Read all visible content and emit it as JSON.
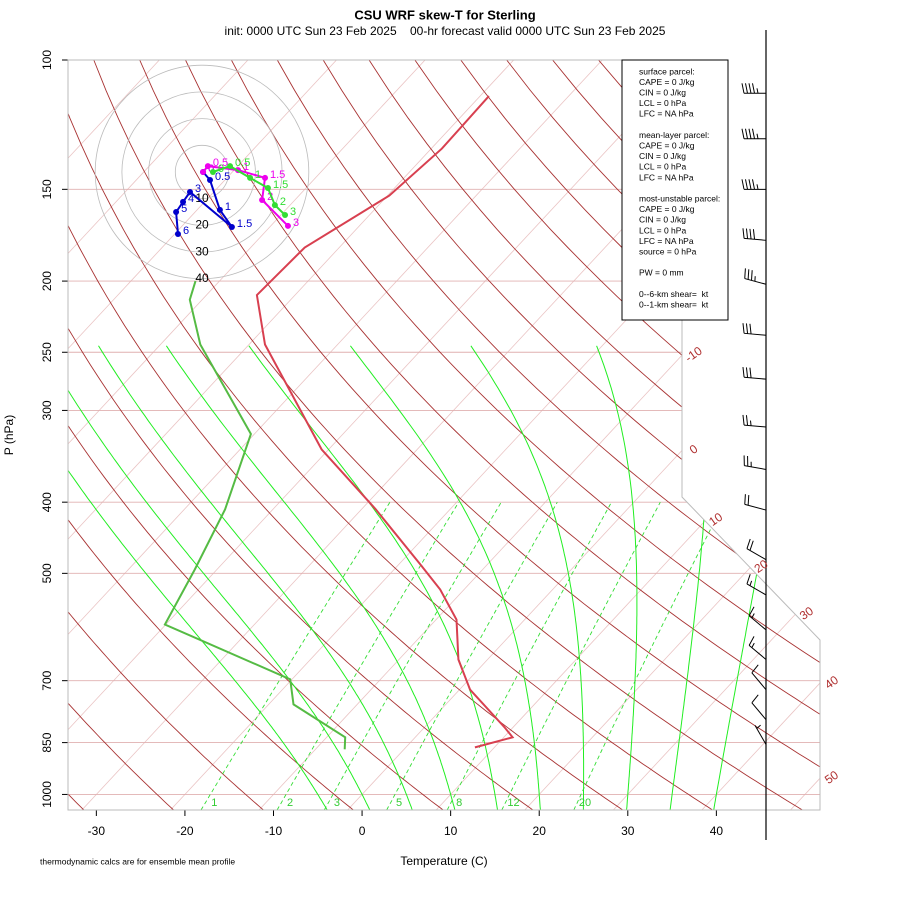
{
  "chart_data": {
    "type": "skew-t",
    "title": "CSU WRF skew-T for Sterling",
    "subtitle": "init: 0000 UTC Sun 23 Feb 2025    00-hr forecast valid 0000 UTC Sun 23 Feb 2025",
    "x_label": "Temperature (C)",
    "y_label": "P (hPa)",
    "footnote": "thermodynamic calcs are for ensemble mean profile",
    "log_y": true,
    "xlim": [
      -33.2,
      51.7
    ],
    "xticks": [
      -30,
      -20,
      -10,
      0,
      10,
      20,
      30,
      40
    ],
    "ylim": [
      1050,
      100
    ],
    "yticks": [
      100,
      150,
      200,
      250,
      300,
      400,
      500,
      700,
      850,
      1000
    ],
    "isotherms": [
      -100,
      -90,
      -80,
      -70,
      -60,
      -50,
      -40,
      -30,
      -20,
      -10,
      0,
      10,
      20,
      30,
      40,
      50
    ],
    "isotherm_labels": [
      -10,
      0,
      10,
      20,
      30,
      40,
      50
    ],
    "dry_adiabats": [
      230,
      240,
      250,
      260,
      270,
      280,
      290,
      300,
      310,
      320,
      330,
      340,
      350,
      360,
      370,
      380,
      390,
      400,
      410,
      420,
      430,
      440,
      450,
      460,
      470,
      480
    ],
    "moist_adiabats": [
      -5,
      0,
      5,
      10,
      15,
      20,
      25,
      30,
      35,
      40
    ],
    "mixing_ratios": [
      1,
      2,
      3,
      5,
      8,
      12,
      20
    ],
    "series": [
      {
        "color": "#d84050",
        "pressure": [
          863,
          836,
          811,
          720,
          655,
          578,
          526,
          486,
          409,
          339,
          244,
          209,
          180,
          153,
          132,
          112
        ],
        "values": [
          7.8,
          11.0,
          9.1,
          1.2,
          -3.3,
          -7.7,
          -12.7,
          -17.6,
          -28.4,
          -40.8,
          -58.2,
          -64.3,
          -63.9,
          -59.8,
          -58.8,
          -59.0
        ]
      },
      {
        "color": "#55bb44",
        "pressure": [
          868,
          836,
          754,
          697,
          587,
          494,
          409,
          323,
          244,
          212,
          200
        ],
        "values": [
          -6.7,
          -7.9,
          -17.2,
          -20.2,
          -40.1,
          -42.5,
          -45.4,
          -50.4,
          -65.5,
          -71.4,
          -72.7
        ]
      }
    ],
    "hodograph": {
      "rings": [
        10,
        20,
        30,
        40
      ],
      "series": [
        {
          "color": "#0000cc",
          "labels": [
            "0",
            "0.5",
            "1",
            "1.5",
            "3",
            "4",
            "5",
            "6"
          ],
          "u": [
            0.4,
            3,
            6.7,
            11.2,
            -4.5,
            -7.1,
            -9.7,
            -9
          ],
          "v": [
            0,
            -3,
            -14.2,
            -20.6,
            -7.5,
            -11.2,
            -15,
            -23.2
          ]
        },
        {
          "color": "#ee00ee",
          "labels": [
            "0",
            "0.5",
            "1",
            "1.5",
            "2",
            "3"
          ],
          "u": [
            0.4,
            2.2,
            13.5,
            23.6,
            22.5,
            32.2
          ],
          "v": [
            0,
            2.2,
            0.7,
            -2.2,
            -10.5,
            -20.2
          ]
        },
        {
          "color": "#33dd33",
          "labels": [
            "0",
            "0.5",
            "1",
            "1.5",
            "2",
            "3"
          ],
          "u": [
            4.1,
            10.5,
            18,
            24.7,
            27.3,
            31.1
          ],
          "v": [
            0,
            2.2,
            -2.2,
            -6,
            -12.4,
            -16.1
          ]
        }
      ]
    },
    "wind_barbs": {
      "pressure": [
        111,
        128,
        150,
        176,
        202,
        237,
        272,
        316,
        361,
        410,
        479,
        535,
        597,
        655,
        720,
        791,
        855
      ],
      "speed": [
        45,
        45,
        45,
        40,
        35,
        30,
        30,
        25,
        25,
        20,
        20,
        15,
        15,
        15,
        10,
        10,
        5
      ],
      "direction": [
        270,
        270,
        270,
        275,
        285,
        275,
        275,
        275,
        280,
        285,
        300,
        300,
        310,
        310,
        320,
        320,
        330
      ]
    },
    "info_box": [
      [
        "surface parcel:",
        "CAPE = 0 J/kg",
        "CIN = 0 J/kg",
        "LCL = 0 hPa",
        "LFC = NA hPa"
      ],
      [
        "mean-layer parcel:",
        "CAPE = 0 J/kg",
        "CIN = 0 J/kg",
        "LCL = 0 hPa",
        "LFC = NA hPa"
      ],
      [
        "most-unstable parcel:",
        "CAPE = 0 J/kg",
        "CIN = 0 J/kg",
        "LCL = 0 hPa",
        "LFC = NA hPa",
        "source = 0 hPa"
      ],
      [
        "PW = 0 mm"
      ],
      [
        "0--6-km shear=  kt",
        "0--1-km shear=  kt"
      ]
    ]
  }
}
